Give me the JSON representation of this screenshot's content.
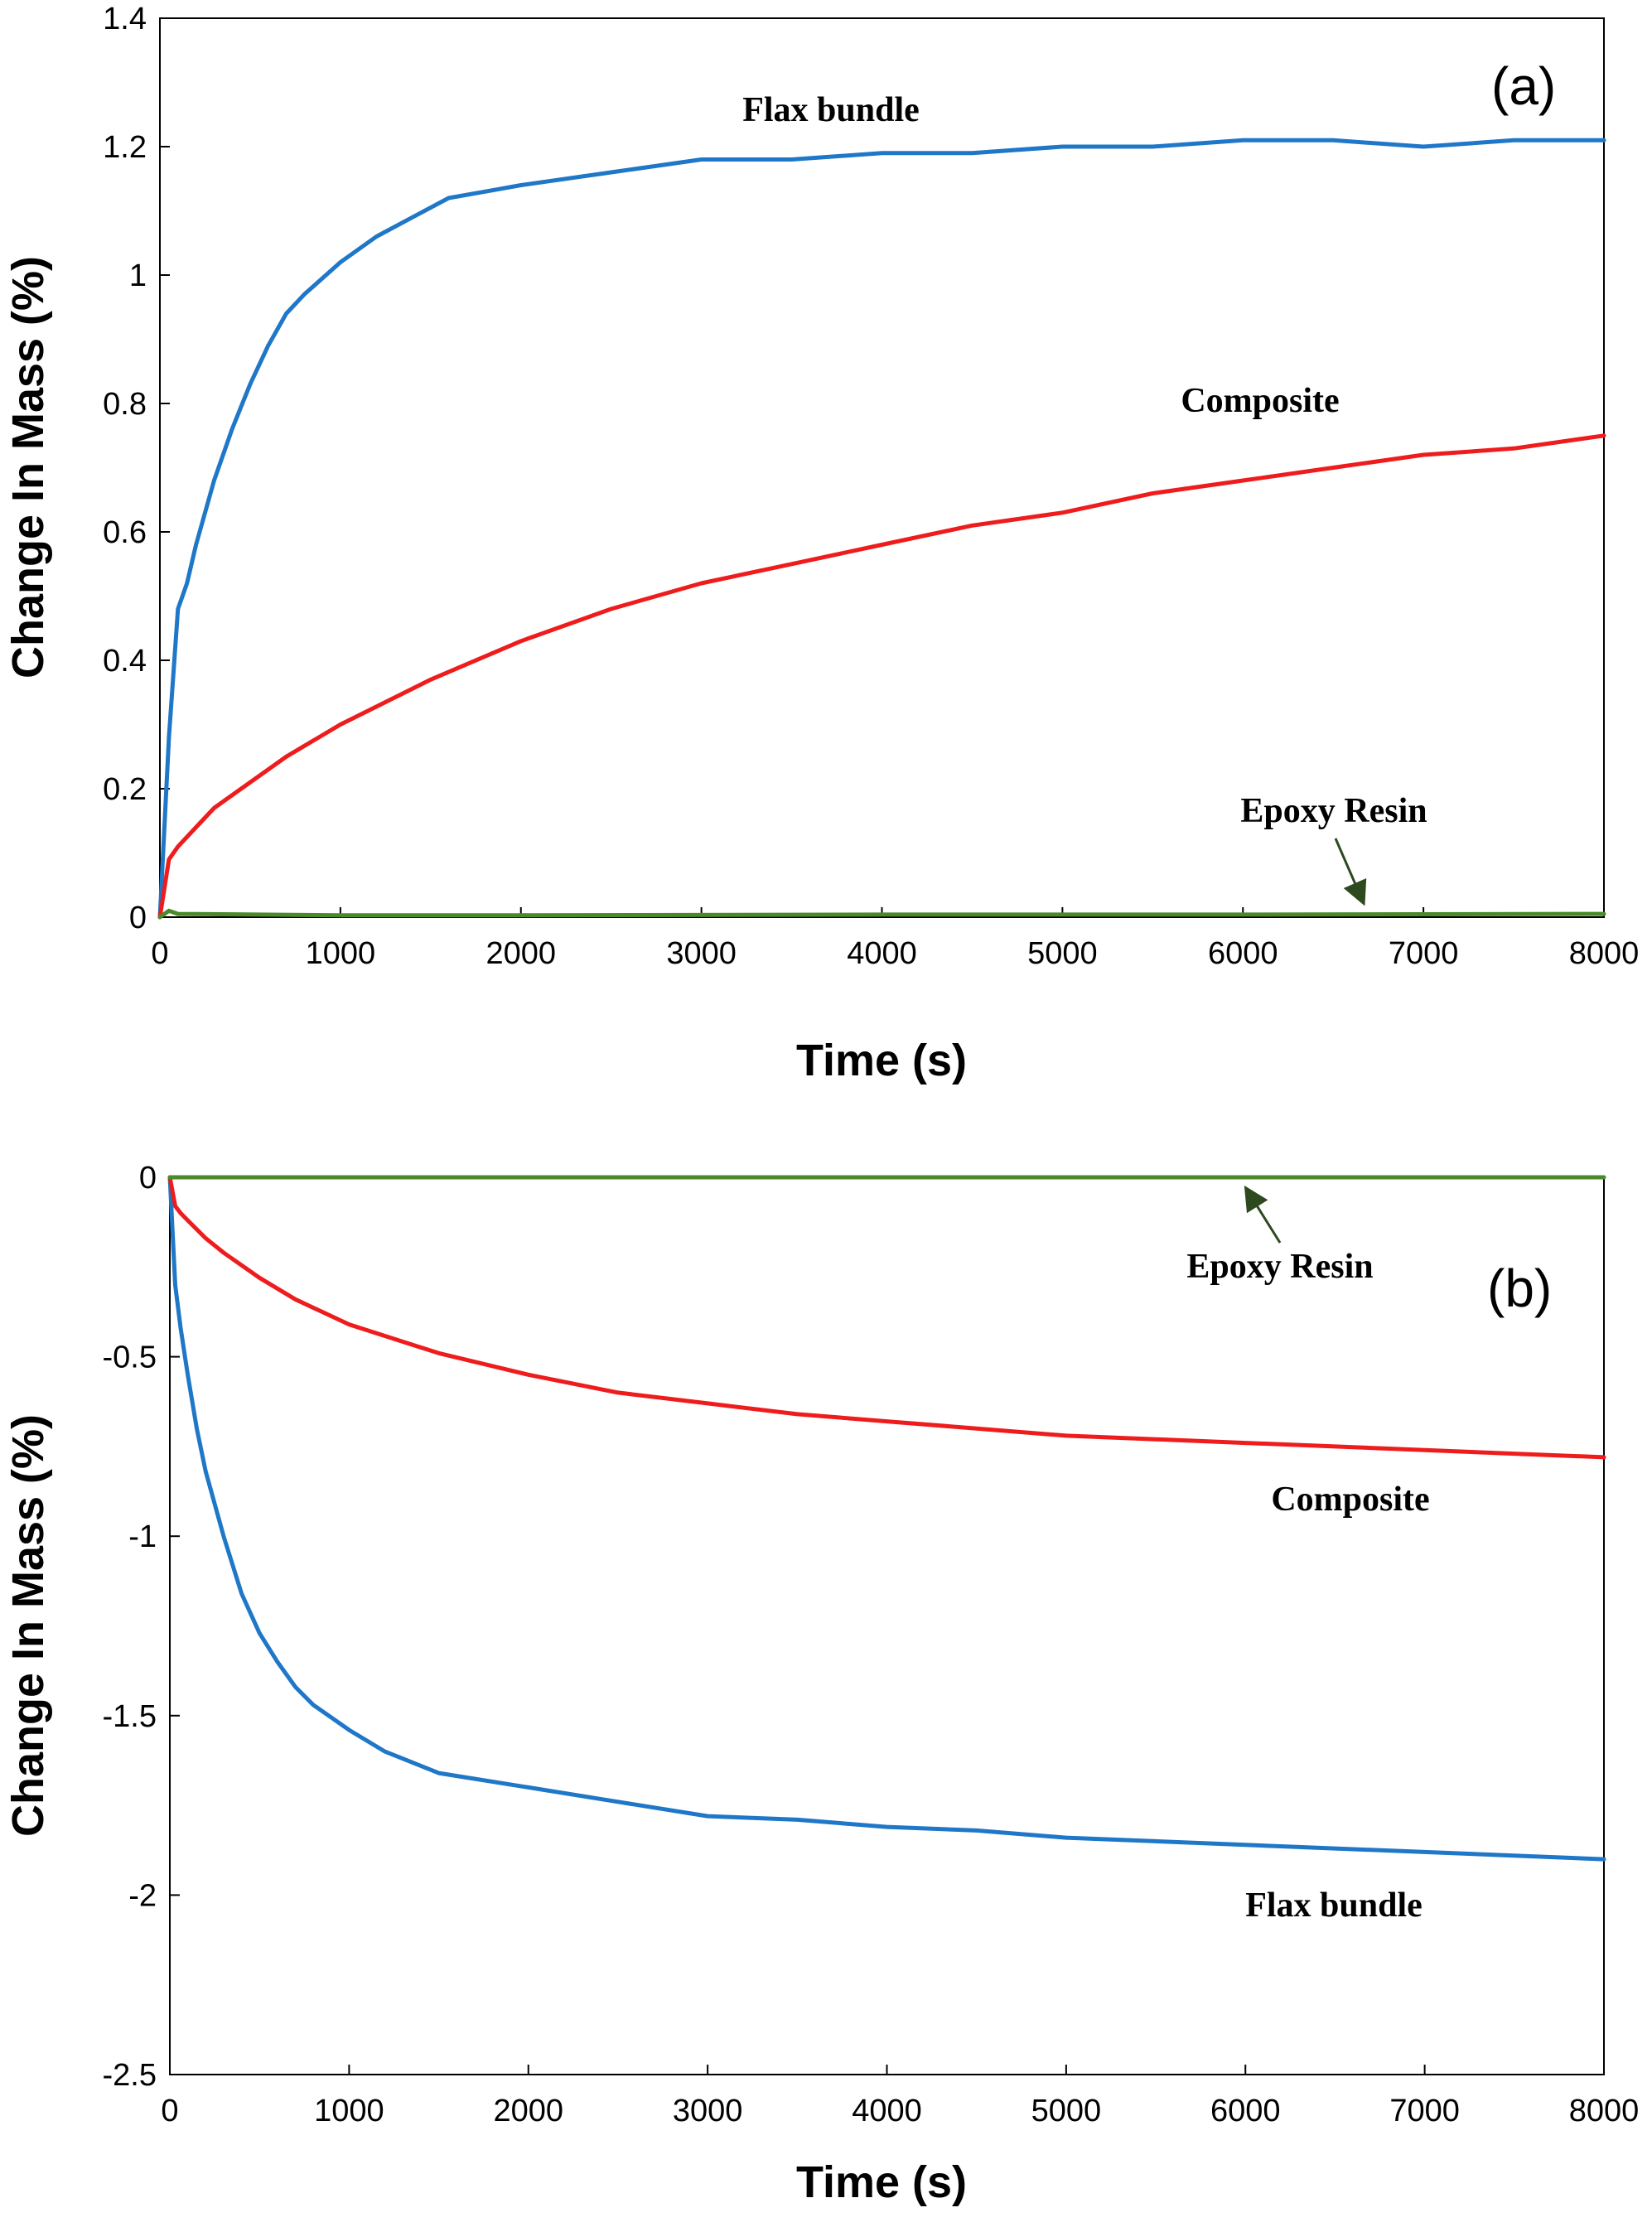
{
  "chart_data": [
    {
      "type": "line",
      "panel_label": "(a)",
      "xlabel": "Time  (s)",
      "ylabel": "Change In Mass (%)",
      "xlim": [
        0,
        8000
      ],
      "ylim": [
        0,
        1.4
      ],
      "xticks": [
        "0",
        "1000",
        "2000",
        "3000",
        "4000",
        "5000",
        "6000",
        "7000",
        "8000"
      ],
      "yticks": [
        "0",
        "0.2",
        "0.4",
        "0.6",
        "0.8",
        "1",
        "1.2",
        "1.4"
      ],
      "grid": false,
      "series": [
        {
          "name": "Flax bundle",
          "color": "#1f77c8",
          "x": [
            0,
            50,
            100,
            150,
            200,
            300,
            400,
            500,
            600,
            700,
            800,
            1000,
            1200,
            1400,
            1600,
            1800,
            2000,
            2500,
            3000,
            3500,
            4000,
            4500,
            5000,
            5500,
            6000,
            6500,
            7000,
            7500,
            8000
          ],
          "y": [
            0,
            0.28,
            0.48,
            0.52,
            0.58,
            0.68,
            0.76,
            0.83,
            0.89,
            0.94,
            0.97,
            1.02,
            1.06,
            1.09,
            1.12,
            1.13,
            1.14,
            1.16,
            1.18,
            1.18,
            1.19,
            1.19,
            1.2,
            1.2,
            1.21,
            1.21,
            1.2,
            1.21,
            1.21
          ]
        },
        {
          "name": "Composite",
          "color": "#ee1c1c",
          "x": [
            0,
            50,
            100,
            200,
            300,
            400,
            500,
            700,
            1000,
            1500,
            2000,
            2500,
            3000,
            3500,
            4000,
            4500,
            5000,
            5500,
            6000,
            6500,
            7000,
            7500,
            8000
          ],
          "y": [
            0,
            0.09,
            0.11,
            0.14,
            0.17,
            0.19,
            0.21,
            0.25,
            0.3,
            0.37,
            0.43,
            0.48,
            0.52,
            0.55,
            0.58,
            0.61,
            0.63,
            0.66,
            0.68,
            0.7,
            0.72,
            0.73,
            0.75
          ]
        },
        {
          "name": "Epoxy Resin",
          "color": "#4a8a2a",
          "x": [
            0,
            50,
            100,
            1000,
            2000,
            4000,
            6000,
            8000
          ],
          "y": [
            0,
            0.01,
            0.005,
            0.003,
            0.003,
            0.004,
            0.004,
            0.005
          ]
        }
      ],
      "annotations": [
        "Flax bundle",
        "Composite",
        "Epoxy Resin"
      ]
    },
    {
      "type": "line",
      "panel_label": "(b)",
      "xlabel": "Time  (s)",
      "ylabel": "Change In Mass (%)",
      "xlim": [
        0,
        8000
      ],
      "ylim": [
        -2.5,
        0
      ],
      "xticks": [
        "0",
        "1000",
        "2000",
        "3000",
        "4000",
        "5000",
        "6000",
        "7000",
        "8000"
      ],
      "yticks": [
        "0",
        "-0.5",
        "-1",
        "-1.5",
        "-2",
        "-2.5"
      ],
      "grid": false,
      "series": [
        {
          "name": "Flax bundle",
          "color": "#1f77c8",
          "x": [
            0,
            30,
            60,
            100,
            150,
            200,
            300,
            400,
            500,
            600,
            700,
            800,
            1000,
            1200,
            1500,
            2000,
            2500,
            3000,
            3500,
            4000,
            4500,
            5000,
            5500,
            6000,
            6500,
            7000,
            7500,
            8000
          ],
          "y": [
            0,
            -0.3,
            -0.42,
            -0.55,
            -0.7,
            -0.82,
            -1.0,
            -1.16,
            -1.27,
            -1.35,
            -1.42,
            -1.47,
            -1.54,
            -1.6,
            -1.66,
            -1.7,
            -1.74,
            -1.78,
            -1.79,
            -1.81,
            -1.82,
            -1.84,
            -1.85,
            -1.86,
            -1.87,
            -1.88,
            -1.89,
            -1.9
          ]
        },
        {
          "name": "Composite",
          "color": "#ee1c1c",
          "x": [
            0,
            30,
            60,
            100,
            200,
            300,
            500,
            700,
            1000,
            1500,
            2000,
            2500,
            3000,
            3500,
            4000,
            4500,
            5000,
            5500,
            6000,
            6500,
            7000,
            7500,
            8000
          ],
          "y": [
            0,
            -0.08,
            -0.1,
            -0.12,
            -0.17,
            -0.21,
            -0.28,
            -0.34,
            -0.41,
            -0.49,
            -0.55,
            -0.6,
            -0.63,
            -0.66,
            -0.68,
            -0.7,
            -0.72,
            -0.73,
            -0.74,
            -0.75,
            -0.76,
            -0.77,
            -0.78
          ]
        },
        {
          "name": "Epoxy Resin",
          "color": "#4a8a2a",
          "x": [
            0,
            100,
            1000,
            2000,
            4000,
            6000,
            8000
          ],
          "y": [
            0,
            0.0,
            0.0,
            0.0,
            0.0,
            0.0,
            0.0
          ]
        }
      ],
      "annotations": [
        "Epoxy Resin",
        "Composite",
        "Flax bundle"
      ]
    }
  ]
}
